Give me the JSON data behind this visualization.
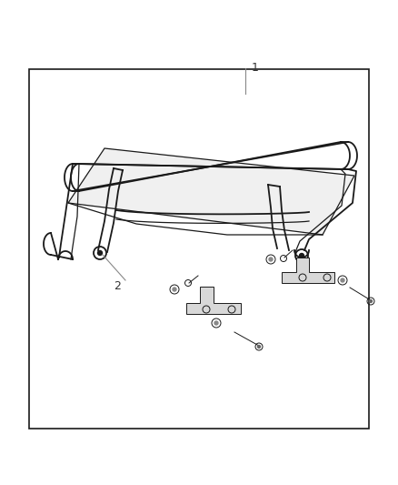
{
  "background_color": "#ffffff",
  "border_color": "#1a1a1a",
  "line_color": "#1a1a1a",
  "label_1": "1",
  "label_2": "2",
  "fig_width": 4.38,
  "fig_height": 5.33,
  "dpi": 100
}
